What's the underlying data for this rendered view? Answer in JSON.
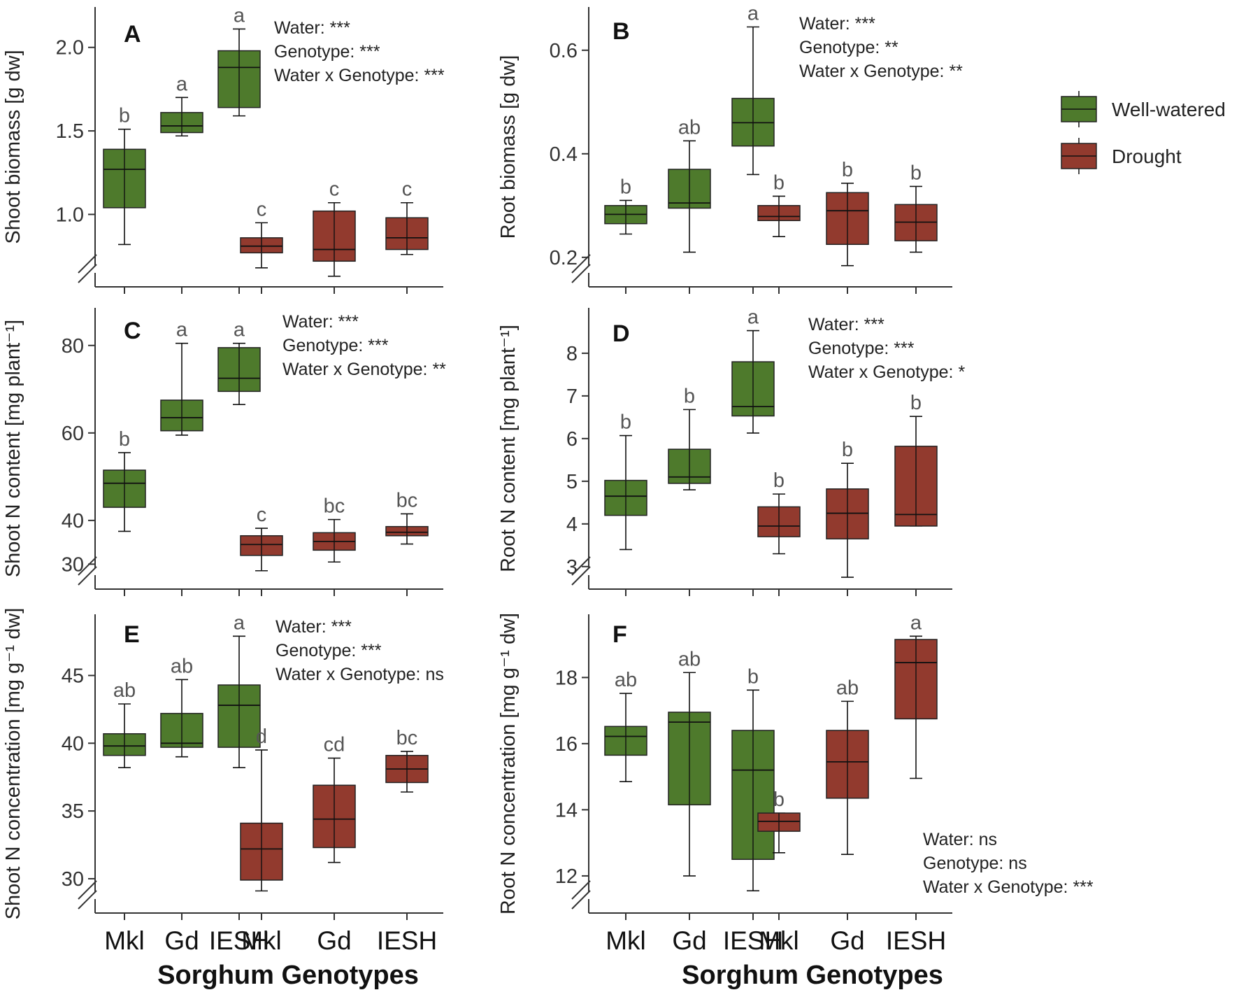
{
  "legend": [
    {
      "name": "Well-watered",
      "color": "#4e7a2c"
    },
    {
      "name": "Drought",
      "color": "#923a2e"
    }
  ],
  "x_title": "Sorghum Genotypes",
  "chart_data": [
    {
      "type": "box",
      "letter": "A",
      "ylabel": "Shoot biomass [g dw]",
      "ylim": [
        0.65,
        2.2
      ],
      "yticks": [
        "1.0",
        "1.5",
        "2.0"
      ],
      "tick_values": [
        1.0,
        1.5,
        2.0
      ],
      "categories": [
        "Mkl",
        "Gd",
        "IESH",
        "Mkl",
        "Gd",
        "IESH"
      ],
      "stats": [
        "Water: ***",
        "Genotype: ***",
        "Water x Genotype: ***"
      ],
      "series": [
        {
          "name": "Well-watered",
          "boxes": [
            {
              "min": 0.82,
              "q1": 1.04,
              "median": 1.27,
              "q3": 1.39,
              "max": 1.51,
              "letter": "b"
            },
            {
              "min": 1.47,
              "q1": 1.49,
              "median": 1.53,
              "q3": 1.61,
              "max": 1.7,
              "letter": "a"
            },
            {
              "min": 1.59,
              "q1": 1.64,
              "median": 1.88,
              "q3": 1.98,
              "max": 2.11,
              "letter": "a"
            }
          ]
        },
        {
          "name": "Drought",
          "boxes": [
            {
              "min": 0.68,
              "q1": 0.77,
              "median": 0.81,
              "q3": 0.86,
              "max": 0.95,
              "letter": "c"
            },
            {
              "min": 0.63,
              "q1": 0.72,
              "median": 0.79,
              "q3": 1.02,
              "max": 1.07,
              "letter": "c"
            },
            {
              "min": 0.76,
              "q1": 0.79,
              "median": 0.86,
              "q3": 0.98,
              "max": 1.07,
              "letter": "c"
            }
          ]
        }
      ]
    },
    {
      "type": "box",
      "letter": "B",
      "ylabel": "Root biomass [g dw]",
      "ylim": [
        0.17,
        0.67
      ],
      "yticks": [
        "0.2",
        "0.4",
        "0.6"
      ],
      "tick_values": [
        0.2,
        0.4,
        0.6
      ],
      "categories": [
        "Mkl",
        "Gd",
        "IESH",
        "Mkl",
        "Gd",
        "IESH"
      ],
      "stats": [
        "Water: ***",
        "Genotype: **",
        "Water x Genotype: **"
      ],
      "series": [
        {
          "name": "Well-watered",
          "boxes": [
            {
              "min": 0.245,
              "q1": 0.265,
              "median": 0.283,
              "q3": 0.3,
              "max": 0.31,
              "letter": "b"
            },
            {
              "min": 0.21,
              "q1": 0.295,
              "median": 0.305,
              "q3": 0.37,
              "max": 0.425,
              "letter": "ab"
            },
            {
              "min": 0.36,
              "q1": 0.415,
              "median": 0.46,
              "q3": 0.507,
              "max": 0.645,
              "letter": "a"
            }
          ]
        },
        {
          "name": "Drought",
          "boxes": [
            {
              "min": 0.24,
              "q1": 0.271,
              "median": 0.279,
              "q3": 0.3,
              "max": 0.318,
              "letter": "b"
            },
            {
              "min": 0.184,
              "q1": 0.225,
              "median": 0.29,
              "q3": 0.325,
              "max": 0.343,
              "letter": "b"
            },
            {
              "min": 0.21,
              "q1": 0.232,
              "median": 0.268,
              "q3": 0.302,
              "max": 0.337,
              "letter": "b"
            }
          ]
        }
      ]
    },
    {
      "type": "box",
      "letter": "C",
      "ylabel": "Shoot N  content [mg plant⁻¹]",
      "ylim": [
        27.5,
        87
      ],
      "yticks": [
        "30",
        "40",
        "60",
        "80"
      ],
      "tick_values": [
        30,
        40,
        60,
        80
      ],
      "categories": [
        "Mkl",
        "Gd",
        "IESH",
        "Mkl",
        "Gd",
        "IESH"
      ],
      "stats": [
        "Water: ***",
        "Genotype: ***",
        "Water x Genotype: **"
      ],
      "series": [
        {
          "name": "Well-watered",
          "boxes": [
            {
              "min": 37.5,
              "q1": 43,
              "median": 48.5,
              "q3": 51.5,
              "max": 55.5,
              "letter": "b"
            },
            {
              "min": 59.5,
              "q1": 60.5,
              "median": 63.5,
              "q3": 67.5,
              "max": 80.5,
              "letter": "a"
            },
            {
              "min": 66.5,
              "q1": 69.5,
              "median": 72.5,
              "q3": 79.5,
              "max": 80.5,
              "letter": "a"
            }
          ]
        },
        {
          "name": "Drought",
          "boxes": [
            {
              "min": 28.5,
              "q1": 32,
              "median": 34.5,
              "q3": 36.5,
              "max": 38.2,
              "letter": "c"
            },
            {
              "min": 30.5,
              "q1": 33.2,
              "median": 35.2,
              "q3": 37.2,
              "max": 40.2,
              "letter": "bc"
            },
            {
              "min": 34.6,
              "q1": 36.5,
              "median": 37.3,
              "q3": 38.6,
              "max": 41.5,
              "letter": "bc"
            }
          ]
        }
      ]
    },
    {
      "type": "box",
      "letter": "D",
      "ylabel": "Root N  content [mg plant⁻¹]",
      "ylim": [
        2.8,
        8.9
      ],
      "yticks": [
        "3",
        "4",
        "5",
        "6",
        "7",
        "8"
      ],
      "tick_values": [
        3,
        4,
        5,
        6,
        7,
        8
      ],
      "categories": [
        "Mkl",
        "Gd",
        "IESH",
        "Mkl",
        "Gd",
        "IESH"
      ],
      "stats": [
        "Water: ***",
        "Genotype: ***",
        "Water x Genotype: *"
      ],
      "series": [
        {
          "name": "Well-watered",
          "boxes": [
            {
              "min": 3.4,
              "q1": 4.2,
              "median": 4.65,
              "q3": 5.02,
              "max": 6.07,
              "letter": "b"
            },
            {
              "min": 4.8,
              "q1": 4.95,
              "median": 5.1,
              "q3": 5.75,
              "max": 6.68,
              "letter": "b"
            },
            {
              "min": 6.13,
              "q1": 6.53,
              "median": 6.75,
              "q3": 7.8,
              "max": 8.53,
              "letter": "a"
            }
          ]
        },
        {
          "name": "Drought",
          "boxes": [
            {
              "min": 3.3,
              "q1": 3.7,
              "median": 3.95,
              "q3": 4.4,
              "max": 4.7,
              "letter": "b"
            },
            {
              "min": 2.75,
              "q1": 3.65,
              "median": 4.25,
              "q3": 4.82,
              "max": 5.42,
              "letter": "b"
            },
            {
              "min": 3.95,
              "q1": 3.95,
              "median": 4.22,
              "q3": 5.82,
              "max": 6.52,
              "letter": "b"
            }
          ]
        }
      ]
    },
    {
      "type": "box",
      "letter": "E",
      "ylabel": "Shoot N concentration [mg g⁻¹ dw]",
      "ylim": [
        28.5,
        49
      ],
      "yticks": [
        "30",
        "35",
        "40",
        "45"
      ],
      "tick_values": [
        30,
        35,
        40,
        45
      ],
      "categories": [
        "Mkl",
        "Gd",
        "IESH",
        "Mkl",
        "Gd",
        "IESH"
      ],
      "stats": [
        "Water: ***",
        "Genotype: ***",
        "Water x Genotype: ns"
      ],
      "series": [
        {
          "name": "Well-watered",
          "boxes": [
            {
              "min": 38.2,
              "q1": 39.1,
              "median": 39.8,
              "q3": 40.7,
              "max": 42.9,
              "letter": "ab"
            },
            {
              "min": 39,
              "q1": 39.7,
              "median": 40,
              "q3": 42.2,
              "max": 44.7,
              "letter": "ab"
            },
            {
              "min": 38.2,
              "q1": 39.7,
              "median": 42.8,
              "q3": 44.3,
              "max": 47.9,
              "letter": "a"
            }
          ]
        },
        {
          "name": "Drought",
          "boxes": [
            {
              "min": 29.1,
              "q1": 29.9,
              "median": 32.2,
              "q3": 34.1,
              "max": 39.5,
              "letter": "d"
            },
            {
              "min": 31.2,
              "q1": 32.3,
              "median": 34.4,
              "q3": 36.9,
              "max": 38.9,
              "letter": "cd"
            },
            {
              "min": 36.4,
              "q1": 37.1,
              "median": 38.1,
              "q3": 39.1,
              "max": 39.4,
              "letter": "bc"
            }
          ]
        }
      ]
    },
    {
      "type": "box",
      "letter": "F",
      "ylabel": "Root N concentration [mg g⁻¹ dw]",
      "ylim": [
        11.3,
        19.7
      ],
      "yticks": [
        "12",
        "14",
        "16",
        "18"
      ],
      "tick_values": [
        12,
        14,
        16,
        18
      ],
      "categories": [
        "Mkl",
        "Gd",
        "IESH",
        "Mkl",
        "Gd",
        "IESH"
      ],
      "stats": [
        "Water: ns",
        "Genotype: ns",
        "Water x Genotype: ***"
      ],
      "series": [
        {
          "name": "Well-watered",
          "boxes": [
            {
              "min": 14.85,
              "q1": 15.65,
              "median": 16.22,
              "q3": 16.52,
              "max": 17.52,
              "letter": "ab"
            },
            {
              "min": 12,
              "q1": 14.15,
              "median": 16.65,
              "q3": 16.95,
              "max": 18.15,
              "letter": "ab"
            },
            {
              "min": 11.55,
              "q1": 12.5,
              "median": 15.2,
              "q3": 16.4,
              "max": 17.62,
              "letter": "b"
            }
          ]
        },
        {
          "name": "Drought",
          "boxes": [
            {
              "min": 12.7,
              "q1": 13.35,
              "median": 13.65,
              "q3": 13.9,
              "max": 13.9,
              "letter": "b"
            },
            {
              "min": 12.65,
              "q1": 14.35,
              "median": 15.45,
              "q3": 16.4,
              "max": 17.28,
              "letter": "ab"
            },
            {
              "min": 14.95,
              "q1": 16.75,
              "median": 18.45,
              "q3": 19.15,
              "max": 19.25,
              "letter": "a"
            }
          ]
        }
      ]
    }
  ]
}
